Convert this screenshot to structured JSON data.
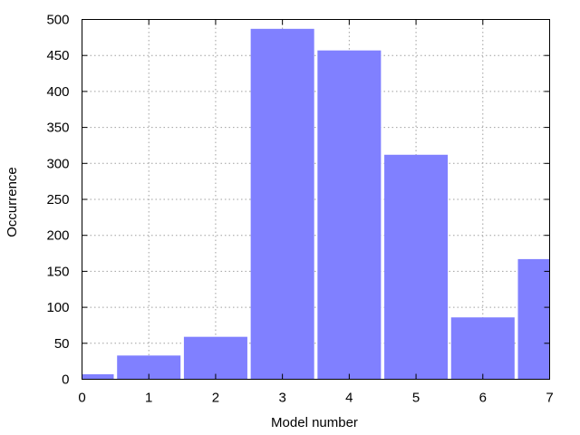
{
  "chart_data": {
    "type": "bar",
    "title": "",
    "xlabel": "Model number",
    "ylabel": "Occurrence",
    "xlim": [
      0,
      7
    ],
    "ylim": [
      0,
      500
    ],
    "x_ticks": [
      "0",
      "1",
      "2",
      "3",
      "4",
      "5",
      "6",
      "7"
    ],
    "y_ticks": [
      "0",
      "50",
      "100",
      "150",
      "200",
      "250",
      "300",
      "350",
      "400",
      "450",
      "500"
    ],
    "grid": true,
    "bar_color": "#8080ff",
    "bars": [
      {
        "x": 0,
        "value": 7
      },
      {
        "x": 1,
        "value": 33
      },
      {
        "x": 2,
        "value": 59
      },
      {
        "x": 3,
        "value": 487
      },
      {
        "x": 4,
        "value": 457
      },
      {
        "x": 5,
        "value": 312
      },
      {
        "x": 6,
        "value": 86
      },
      {
        "x": 7,
        "value": 167
      }
    ]
  }
}
